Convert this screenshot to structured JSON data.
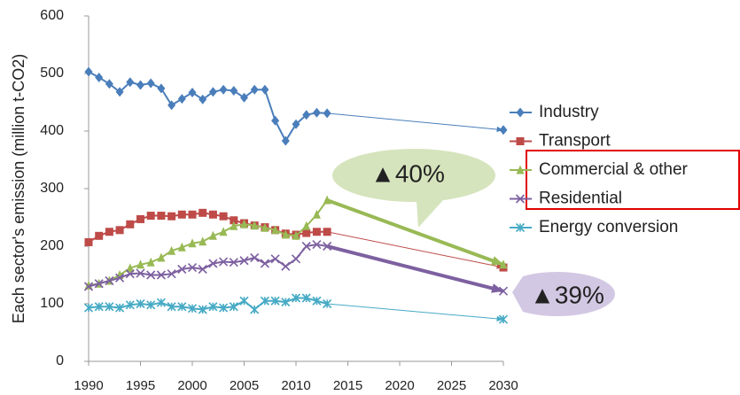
{
  "chart_data": {
    "type": "line",
    "y_label": "Each sector's emission (million t-CO2)",
    "x": [
      1990,
      1991,
      1992,
      1993,
      1994,
      1995,
      1996,
      1997,
      1998,
      1999,
      2000,
      2001,
      2002,
      2003,
      2004,
      2005,
      2006,
      2007,
      2008,
      2009,
      2010,
      2011,
      2012,
      2013,
      2030
    ],
    "series": [
      {
        "name": "Industry",
        "color": "#4a7ebb",
        "marker": "diamond",
        "values": [
          503,
          493,
          482,
          468,
          485,
          480,
          483,
          474,
          445,
          456,
          467,
          455,
          468,
          472,
          470,
          458,
          472,
          472,
          418,
          383,
          412,
          428,
          432,
          431,
          402
        ]
      },
      {
        "name": "Transport",
        "color": "#be4b48",
        "marker": "square",
        "values": [
          207,
          218,
          225,
          228,
          238,
          247,
          253,
          253,
          252,
          255,
          255,
          258,
          255,
          252,
          245,
          240,
          236,
          233,
          228,
          222,
          220,
          223,
          225,
          225,
          163
        ]
      },
      {
        "name": "Commercial & other",
        "color": "#98b954",
        "marker": "triangle",
        "values": [
          132,
          135,
          140,
          150,
          162,
          168,
          172,
          180,
          192,
          198,
          205,
          208,
          218,
          225,
          235,
          238,
          236,
          232,
          228,
          220,
          218,
          235,
          255,
          280,
          168
        ]
      },
      {
        "name": "Residential",
        "color": "#7d60a0",
        "marker": "x",
        "values": [
          130,
          135,
          140,
          145,
          152,
          153,
          150,
          150,
          152,
          160,
          163,
          160,
          170,
          173,
          172,
          175,
          180,
          170,
          178,
          165,
          178,
          200,
          203,
          200,
          122
        ]
      },
      {
        "name": "Energy conversion",
        "color": "#46aac5",
        "marker": "star",
        "values": [
          93,
          95,
          95,
          93,
          98,
          100,
          98,
          102,
          95,
          95,
          92,
          90,
          95,
          93,
          95,
          105,
          90,
          105,
          105,
          103,
          110,
          110,
          105,
          100,
          73
        ]
      }
    ],
    "annotations": [
      "▲40%",
      "▲39%"
    ],
    "xlim": [
      1990,
      2030
    ],
    "xticks": [
      1990,
      1995,
      2000,
      2005,
      2010,
      2015,
      2020,
      2025,
      2030
    ],
    "ylim": [
      0,
      600
    ],
    "yticks": [
      0,
      100,
      200,
      300,
      400,
      500,
      600
    ],
    "grid": false,
    "legend": "right"
  }
}
